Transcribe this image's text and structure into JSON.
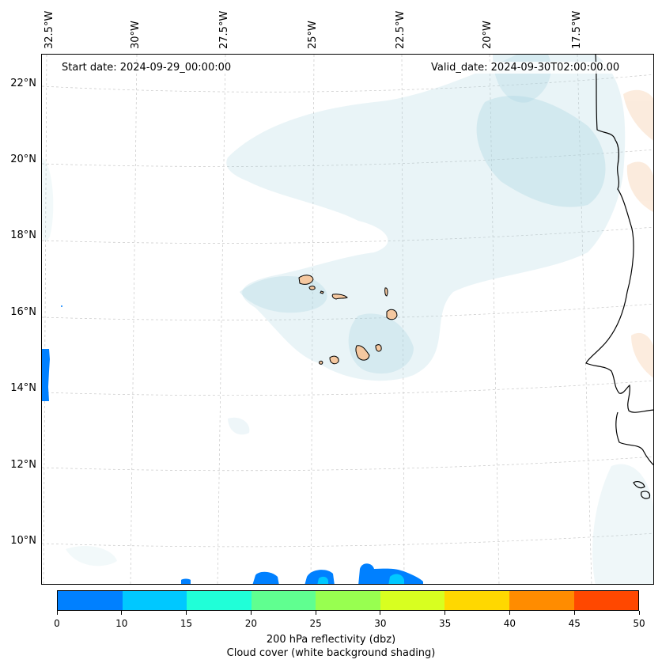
{
  "map": {
    "start_date": "Start date: 2024-09-29_00:00:00",
    "valid_date": "Valid_date: 2024-09-30T02:00:00.00",
    "lon_labels": [
      "32.5°W",
      "30°W",
      "27.5°W",
      "25°W",
      "22.5°W",
      "20°W",
      "17.5°W"
    ],
    "lat_labels": [
      "22°N",
      "20°N",
      "18°N",
      "16°N",
      "14°N",
      "12°N",
      "10°N"
    ],
    "region": "Cape Verde / West African coast"
  },
  "colorbar": {
    "ticks": [
      "0",
      "10",
      "15",
      "20",
      "25",
      "30",
      "35",
      "40",
      "45",
      "50"
    ],
    "colors": [
      "#0080ff",
      "#00c8ff",
      "#20ffd8",
      "#60ff90",
      "#98ff50",
      "#d8ff20",
      "#ffd800",
      "#ff8c00",
      "#ff4800"
    ],
    "label_line1": "200 hPa reflectivity (dbz)",
    "label_line2": "Cloud cover (white background shading)"
  },
  "colors": {
    "cloud": "#a8d4e0",
    "land": "#f5c8a0",
    "grid": "#c8c8c8"
  }
}
